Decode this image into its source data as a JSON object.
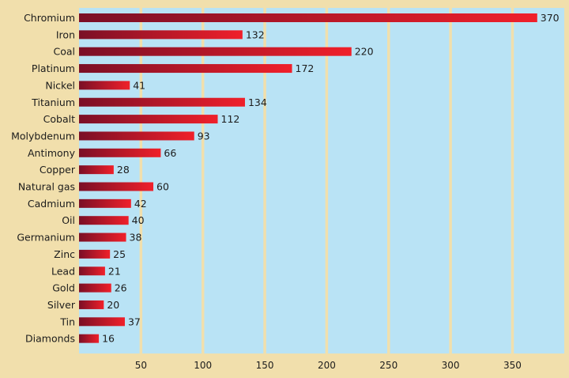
{
  "chart_data": {
    "type": "bar",
    "orientation": "horizontal",
    "title": "",
    "xlabel": "",
    "ylabel": "",
    "xlim": [
      0,
      380
    ],
    "grid": true,
    "ticks": [
      50,
      100,
      150,
      200,
      250,
      300,
      350
    ],
    "tick_labels": [
      "50",
      "100",
      "150",
      "200",
      "250",
      "300",
      "350"
    ],
    "categories": [
      "Chromium",
      "Iron",
      "Coal",
      "Platinum",
      "Nickel",
      "Titanium",
      "Cobalt",
      "Molybdenum",
      "Antimony",
      "Copper",
      "Natural gas",
      "Cadmium",
      "Oil",
      "Germanium",
      "Zinc",
      "Lead",
      "Gold",
      "Silver",
      "Tin",
      "Diamonds"
    ],
    "values": [
      370,
      132,
      220,
      172,
      41,
      134,
      112,
      93,
      66,
      28,
      60,
      42,
      40,
      38,
      25,
      21,
      26,
      20,
      37,
      16
    ],
    "value_labels": [
      "370",
      "132",
      "220",
      "172",
      "41",
      "134",
      "112",
      "93",
      "66",
      "28",
      "60",
      "42",
      "40",
      "38",
      "25",
      "21",
      "26",
      "20",
      "37",
      "16"
    ]
  },
  "colors": {
    "background": "#f1dfac",
    "plot_area": "#b9e3f5",
    "gridline": "#f1dfac",
    "bar_start": "#7a0f26",
    "bar_end": "#f0202a"
  }
}
